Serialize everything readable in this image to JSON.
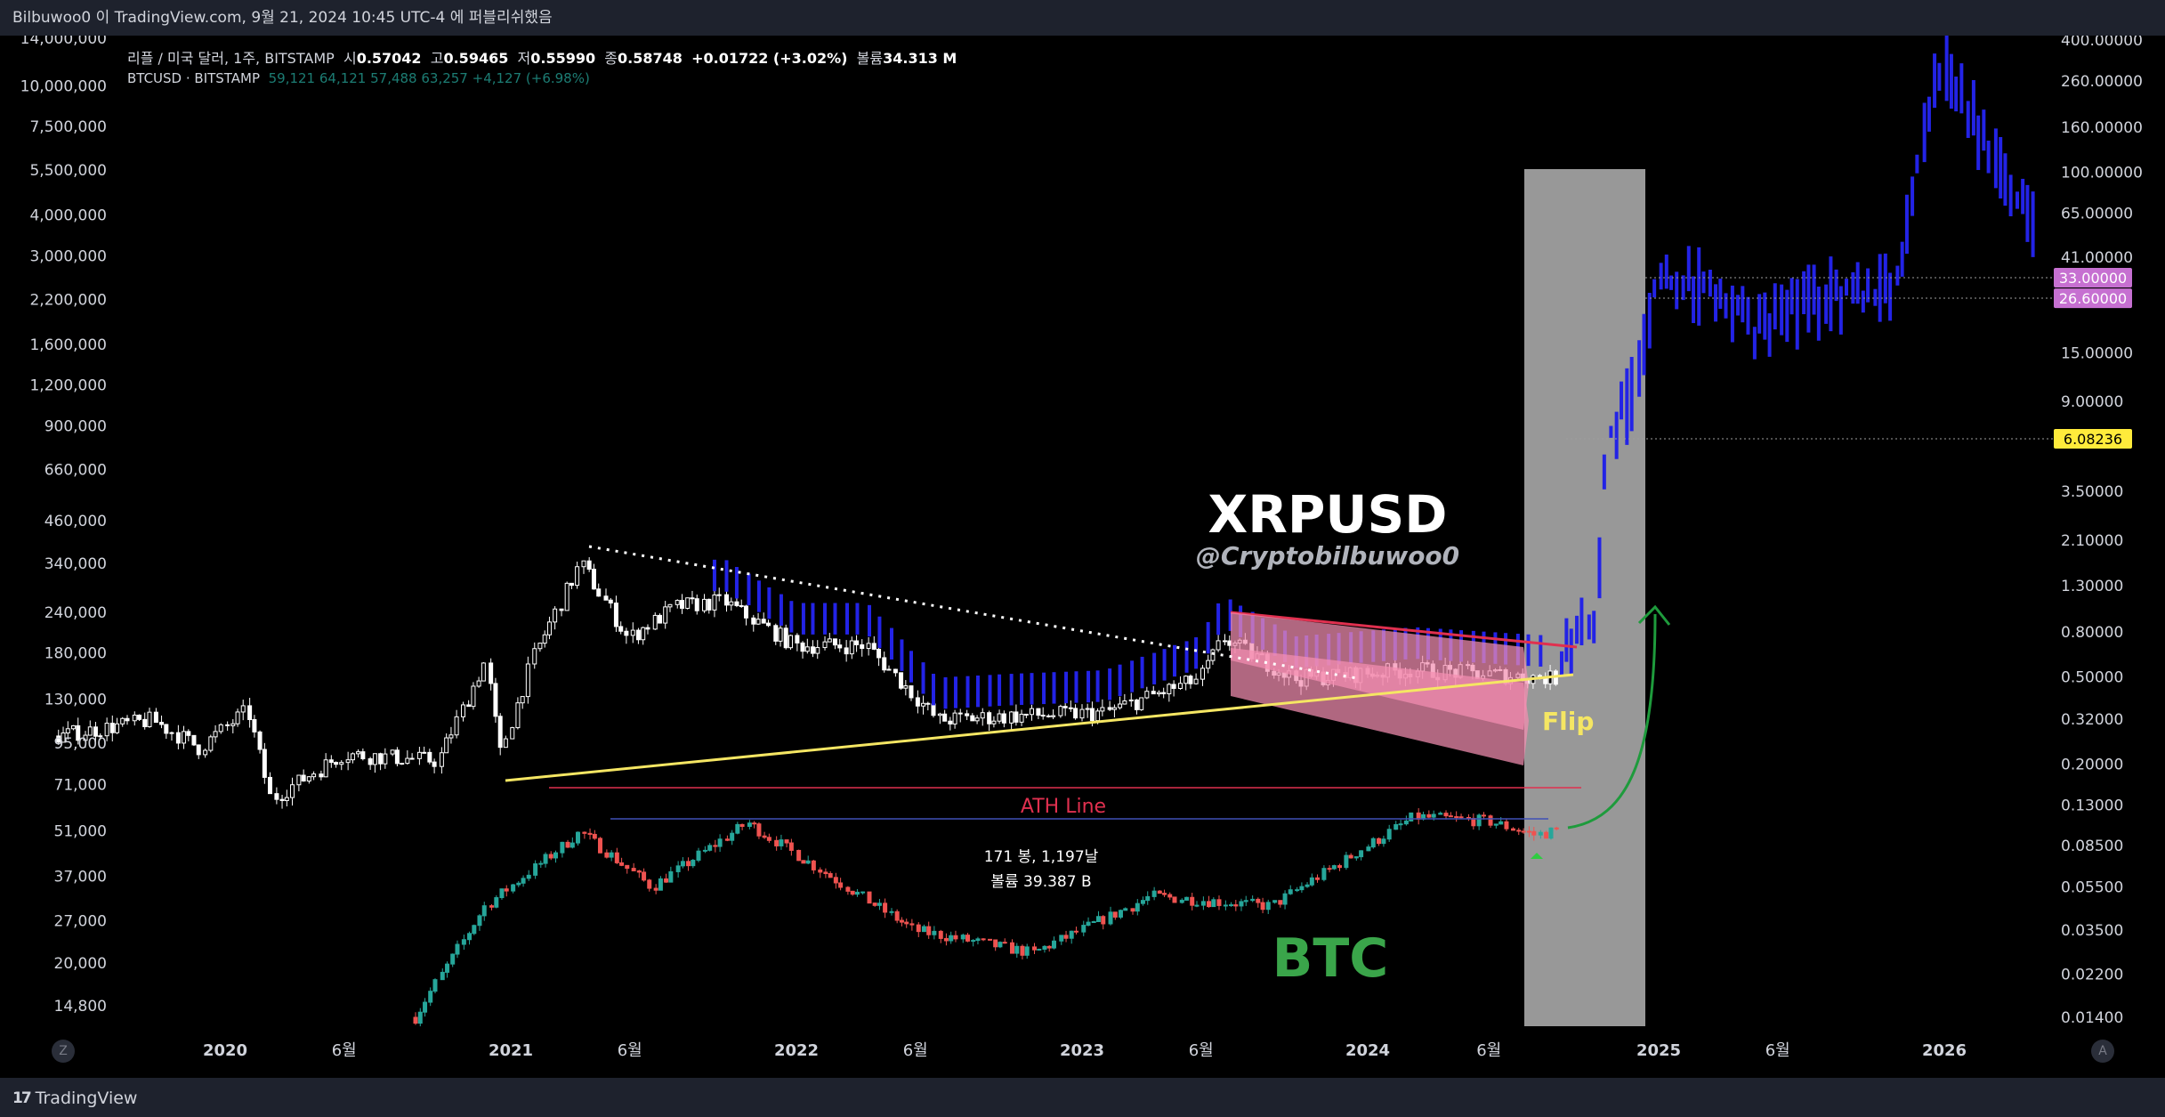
{
  "header": {
    "attribution": "Bilbuwoo0 이 TradingView.com, 9월 21, 2024 10:45 UTC-4 에 퍼블리쉬했음"
  },
  "footer": {
    "brand": "TradingView",
    "brand_mark": "17"
  },
  "legend": {
    "main_symbol": "리플 / 미국 달러, 1주, BITSTAMP",
    "open_label": "시",
    "open": "0.57042",
    "high_label": "고",
    "high": "0.59465",
    "low_label": "저",
    "low": "0.55990",
    "close_label": "종",
    "close": "0.58748",
    "change": "+0.01722 (+3.02%)",
    "volume_label": "볼륨",
    "volume": "34.313 M",
    "secondary_symbol": "BTCUSD · BITSTAMP",
    "secondary_values": "59,121  64,121  57,488  63,257  +4,127 (+6.98%)"
  },
  "buttons": {
    "z": "Z",
    "a": "A"
  },
  "colors": {
    "background": "#000000",
    "bars": "#1e222d",
    "blue": "#2323e6",
    "yellow": "#f5e663",
    "ath": "#e0304f",
    "green_arrow": "#1e9b3c",
    "highlight_gray": "#a0a0a0",
    "btc_up": "#26a69a",
    "btc_down": "#ef5350",
    "tag_purple": "#c670d1",
    "tag_yellow": "#ffeb3b",
    "btc_text": "#3aa54a"
  },
  "chart_data": {
    "type": "candlestick",
    "x_axis_labels": [
      {
        "label": "2020",
        "date": "2020-01"
      },
      {
        "label": "6월",
        "date": "2020-06"
      },
      {
        "label": "2021",
        "date": "2021-01"
      },
      {
        "label": "6월",
        "date": "2021-06"
      },
      {
        "label": "2022",
        "date": "2022-01"
      },
      {
        "label": "6월",
        "date": "2022-06"
      },
      {
        "label": "2023",
        "date": "2023-01"
      },
      {
        "label": "6월",
        "date": "2023-06"
      },
      {
        "label": "2024",
        "date": "2024-01"
      },
      {
        "label": "6월",
        "date": "2024-06"
      },
      {
        "label": "2025",
        "date": "2025-01"
      },
      {
        "label": "6월",
        "date": "2025-06"
      },
      {
        "label": "2026",
        "date": "2026-01"
      }
    ],
    "left_axis_ticks": [
      "14,000,000",
      "10,000,000",
      "7,500,000",
      "5,500,000",
      "4,000,000",
      "3,000,000",
      "2,200,000",
      "1,600,000",
      "1,200,000",
      "900,000",
      "660,000",
      "460,000",
      "340,000",
      "240,000",
      "180,000",
      "130,000",
      "95,000",
      "71,000",
      "51,000",
      "37,000",
      "27,000",
      "20,000",
      "14,800"
    ],
    "right_axis_ticks": [
      "400.00000",
      "260.00000",
      "160.00000",
      "100.00000",
      "65.00000",
      "41.00000",
      "15.00000",
      "9.00000",
      "3.50000",
      "2.10000",
      "1.30000",
      "0.80000",
      "0.50000",
      "0.32000",
      "0.20000",
      "0.13000",
      "0.08500",
      "0.05500",
      "0.03500",
      "0.02200",
      "0.01400"
    ],
    "right_axis_tags": [
      {
        "value": "33.00000",
        "color": "purple"
      },
      {
        "value": "26.60000",
        "color": "purple"
      },
      {
        "value": "6.08236",
        "color": "yellow"
      }
    ],
    "annotations": {
      "title": "XRPUSD",
      "handle": "@Cryptobilbuwoo0",
      "flip": "Flip",
      "ath_line": "ATH Line",
      "btc": "BTC",
      "measure_line1": "171 봉, 1,197날",
      "measure_line2": "볼륨 39.387 B"
    },
    "series": [
      {
        "name": "리플 / 미국 달러",
        "scale": "left",
        "kind": "weekly-candles",
        "keypoints": [
          {
            "date": "2019-06",
            "value": 100000
          },
          {
            "date": "2019-10",
            "value": 112000
          },
          {
            "date": "2019-12",
            "value": 92000
          },
          {
            "date": "2020-02",
            "value": 120000
          },
          {
            "date": "2020-03",
            "value": 64000
          },
          {
            "date": "2020-06",
            "value": 88000
          },
          {
            "date": "2020-10",
            "value": 84000
          },
          {
            "date": "2020-12",
            "value": 170000
          },
          {
            "date": "2020-12-20",
            "value": 88000
          },
          {
            "date": "2021-02",
            "value": 175000
          },
          {
            "date": "2021-04",
            "value": 340000
          },
          {
            "date": "2021-06",
            "value": 200000
          },
          {
            "date": "2021-08",
            "value": 250000
          },
          {
            "date": "2021-10",
            "value": 260000
          },
          {
            "date": "2022-01",
            "value": 190000
          },
          {
            "date": "2022-04",
            "value": 190000
          },
          {
            "date": "2022-07",
            "value": 112000
          },
          {
            "date": "2022-10",
            "value": 115000
          },
          {
            "date": "2023-02",
            "value": 118000
          },
          {
            "date": "2023-06",
            "value": 150000
          },
          {
            "date": "2023-07",
            "value": 200000
          },
          {
            "date": "2023-10",
            "value": 150000
          },
          {
            "date": "2024-03",
            "value": 160000
          },
          {
            "date": "2024-09",
            "value": 150000
          }
        ]
      },
      {
        "name": "BTCUSD · BITSTAMP",
        "scale": "right",
        "kind": "weekly-candles",
        "keypoints": [
          {
            "date": "2020-09",
            "value": 0.014
          },
          {
            "date": "2020-12",
            "value": 0.045
          },
          {
            "date": "2021-04",
            "value": 0.098
          },
          {
            "date": "2021-07",
            "value": 0.055
          },
          {
            "date": "2021-11",
            "value": 0.108
          },
          {
            "date": "2022-06",
            "value": 0.035
          },
          {
            "date": "2022-11",
            "value": 0.0275
          },
          {
            "date": "2023-04",
            "value": 0.05
          },
          {
            "date": "2023-09",
            "value": 0.045
          },
          {
            "date": "2024-03",
            "value": 0.115
          },
          {
            "date": "2024-06",
            "value": 0.11
          },
          {
            "date": "2024-08",
            "value": 0.095
          },
          {
            "date": "2024-09",
            "value": 0.1
          }
        ]
      },
      {
        "name": "projection",
        "scale": "left",
        "kind": "blue-bars",
        "keypoints": [
          {
            "date": "2024-09",
            "value": 170000
          },
          {
            "date": "2024-10-15",
            "value": 230000
          },
          {
            "date": "2024-11",
            "value": 850000
          },
          {
            "date": "2024-12",
            "value": 1100000
          },
          {
            "date": "2025-01",
            "value": 2600000
          },
          {
            "date": "2025-03",
            "value": 2400000
          },
          {
            "date": "2025-05",
            "value": 1800000
          },
          {
            "date": "2025-08",
            "value": 2200000
          },
          {
            "date": "2025-11",
            "value": 2400000
          },
          {
            "date": "2025-12",
            "value": 6000000
          },
          {
            "date": "2026-01",
            "value": 12000000
          },
          {
            "date": "2026-03",
            "value": 6000000
          },
          {
            "date": "2026-05",
            "value": 3500000
          }
        ]
      }
    ]
  }
}
